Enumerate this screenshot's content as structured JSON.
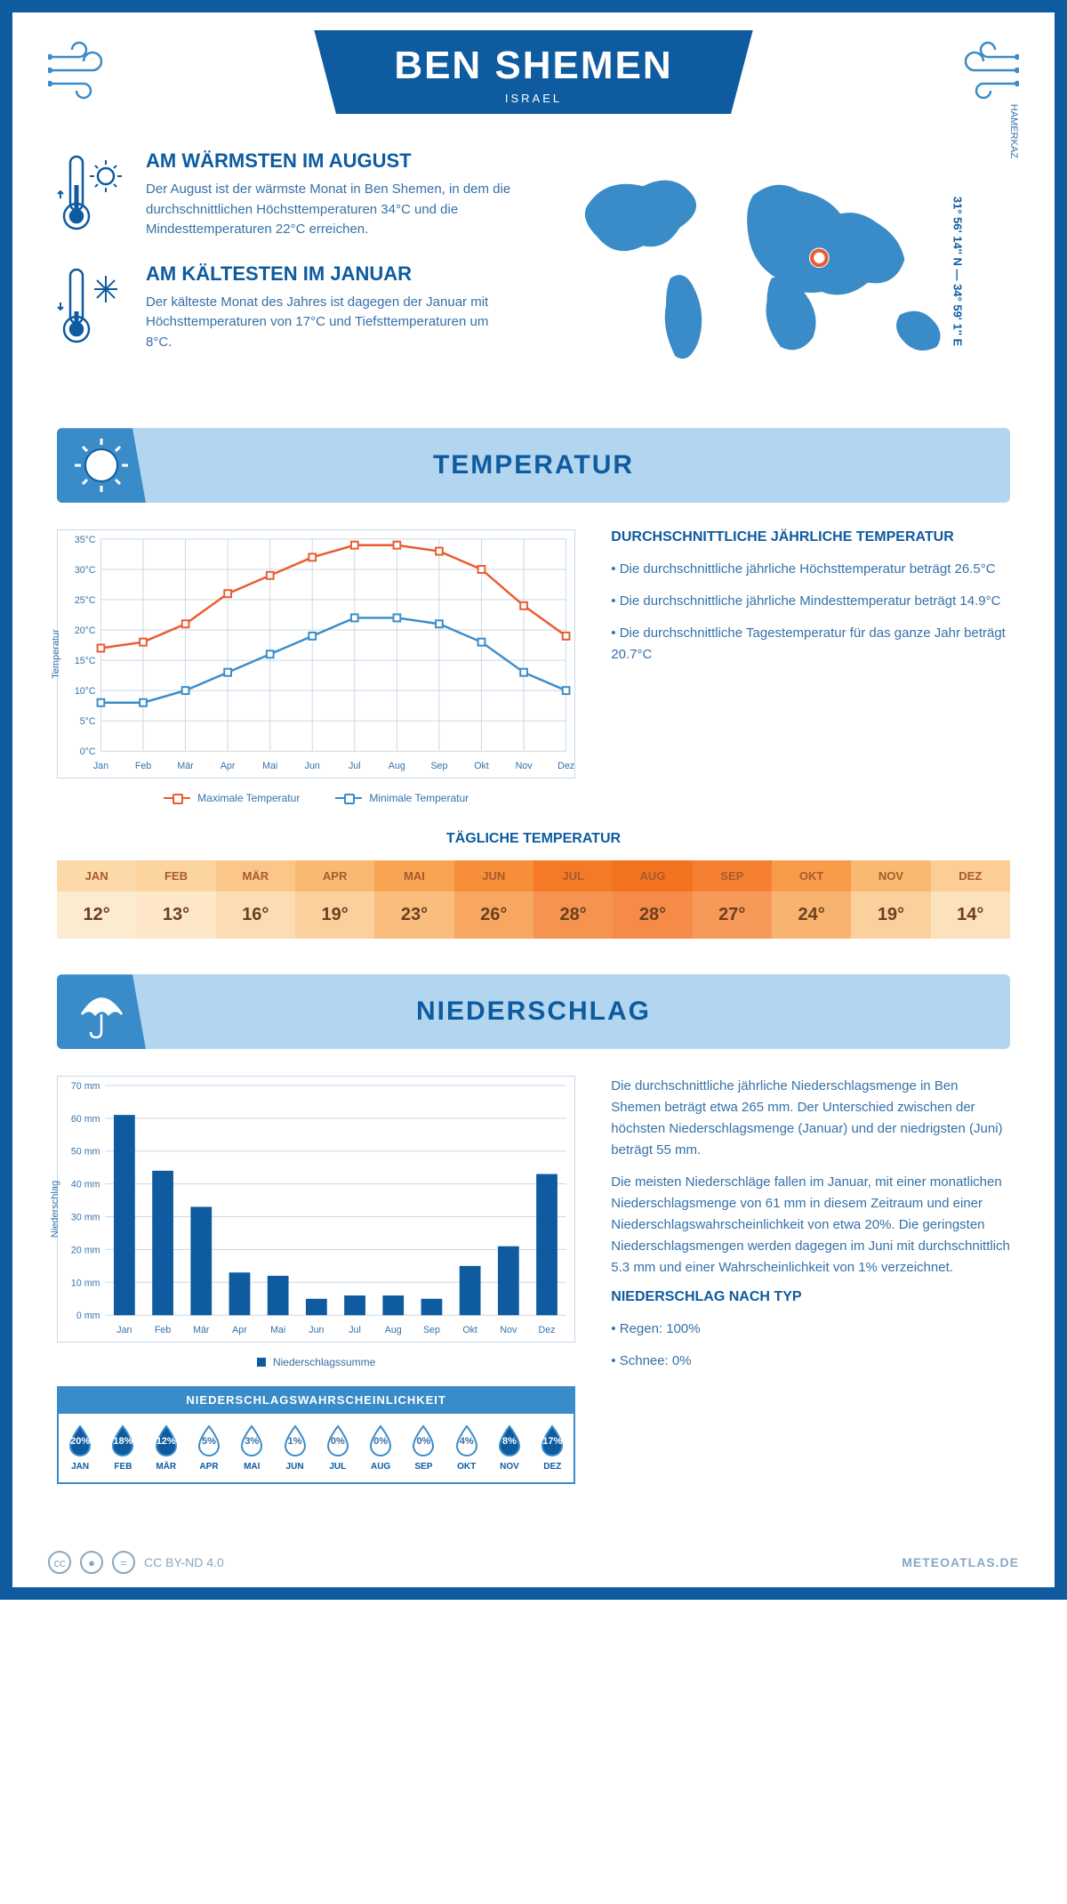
{
  "header": {
    "title": "BEN SHEMEN",
    "subtitle": "ISRAEL"
  },
  "coords": "31° 56' 14'' N — 34° 59' 1'' E",
  "region": "HAMERKAZ",
  "warmest": {
    "title": "AM WÄRMSTEN IM AUGUST",
    "text": "Der August ist der wärmste Monat in Ben Shemen, in dem die durchschnittlichen Höchsttemperaturen 34°C und die Mindesttemperaturen 22°C erreichen."
  },
  "coldest": {
    "title": "AM KÄLTESTEN IM JANUAR",
    "text": "Der kälteste Monat des Jahres ist dagegen der Januar mit Höchsttemperaturen von 17°C und Tiefsttemperaturen um 8°C."
  },
  "temp_section": {
    "title": "TEMPERATUR",
    "avg_title": "DURCHSCHNITTLICHE JÄHRLICHE TEMPERATUR",
    "bullets": [
      "• Die durchschnittliche jährliche Höchsttemperatur beträgt 26.5°C",
      "• Die durchschnittliche jährliche Mindesttemperatur beträgt 14.9°C",
      "• Die durchschnittliche Tagestemperatur für das ganze Jahr beträgt 20.7°C"
    ],
    "legend_max": "Maximale Temperatur",
    "legend_min": "Minimale Temperatur",
    "axis_label": "Temperatur",
    "daily_title": "TÄGLICHE TEMPERATUR"
  },
  "temp_chart": {
    "months": [
      "Jan",
      "Feb",
      "Mär",
      "Apr",
      "Mai",
      "Jun",
      "Jul",
      "Aug",
      "Sep",
      "Okt",
      "Nov",
      "Dez"
    ],
    "max": [
      17,
      18,
      21,
      26,
      29,
      32,
      34,
      34,
      33,
      30,
      24,
      19
    ],
    "min": [
      8,
      8,
      10,
      13,
      16,
      19,
      22,
      22,
      21,
      18,
      13,
      10
    ],
    "ylim": [
      0,
      35
    ],
    "ytick_step": 5,
    "max_color": "#ea5b2f",
    "min_color": "#3a8cc9",
    "grid_color": "#c9d8e6",
    "background": "#ffffff"
  },
  "daily_temp": {
    "months": [
      "JAN",
      "FEB",
      "MÄR",
      "APR",
      "MAI",
      "JUN",
      "JUL",
      "AUG",
      "SEP",
      "OKT",
      "NOV",
      "DEZ"
    ],
    "values": [
      "12°",
      "13°",
      "16°",
      "19°",
      "23°",
      "26°",
      "28°",
      "28°",
      "27°",
      "24°",
      "19°",
      "14°"
    ],
    "head_colors": [
      "#fcd9a8",
      "#fcd4a0",
      "#fbc788",
      "#fab970",
      "#f8a452",
      "#f68e3a",
      "#f47a28",
      "#f37320",
      "#f58032",
      "#f89c4a",
      "#fab970",
      "#fccd95"
    ],
    "cell_colors": [
      "#fdebd0",
      "#fde7c8",
      "#fcdcb2",
      "#fbd09c",
      "#fabd7c",
      "#f8a762",
      "#f69350",
      "#f58b46",
      "#f79958",
      "#f9b370",
      "#fbd09c",
      "#fce1bd"
    ]
  },
  "precip_section": {
    "title": "NIEDERSCHLAG",
    "text1": "Die durchschnittliche jährliche Niederschlagsmenge in Ben Shemen beträgt etwa 265 mm. Der Unterschied zwischen der höchsten Niederschlagsmenge (Januar) und der niedrigsten (Juni) beträgt 55 mm.",
    "text2": "Die meisten Niederschläge fallen im Januar, mit einer monatlichen Niederschlagsmenge von 61 mm in diesem Zeitraum und einer Niederschlagswahrscheinlichkeit von etwa 20%. Die geringsten Niederschlagsmengen werden dagegen im Juni mit durchschnittlich 5.3 mm und einer Wahrscheinlichkeit von 1% verzeichnet.",
    "by_type_title": "NIEDERSCHLAG NACH TYP",
    "by_type": [
      "• Regen: 100%",
      "• Schnee: 0%"
    ],
    "legend": "Niederschlagssumme",
    "axis_label": "Niederschlag",
    "prob_title": "NIEDERSCHLAGSWAHRSCHEINLICHKEIT"
  },
  "precip_chart": {
    "months": [
      "Jan",
      "Feb",
      "Mär",
      "Apr",
      "Mai",
      "Jun",
      "Jul",
      "Aug",
      "Sep",
      "Okt",
      "Nov",
      "Dez"
    ],
    "values": [
      61,
      44,
      33,
      13,
      12,
      5,
      6,
      6,
      5,
      15,
      21,
      43
    ],
    "ylim": [
      0,
      70
    ],
    "ytick_step": 10,
    "bar_color": "#0e5ba0",
    "grid_color": "#c9d8e6"
  },
  "precip_prob": {
    "months": [
      "JAN",
      "FEB",
      "MÄR",
      "APR",
      "MAI",
      "JUN",
      "JUL",
      "AUG",
      "SEP",
      "OKT",
      "NOV",
      "DEZ"
    ],
    "values": [
      "20%",
      "18%",
      "12%",
      "5%",
      "3%",
      "1%",
      "0%",
      "0%",
      "0%",
      "4%",
      "8%",
      "17%"
    ],
    "filled": [
      true,
      true,
      true,
      false,
      false,
      false,
      false,
      false,
      false,
      false,
      true,
      true
    ],
    "fill_color": "#0e5ba0",
    "outline_color": "#3a8cc9"
  },
  "footer": {
    "license": "CC BY-ND 4.0",
    "brand": "METEOATLAS.DE"
  }
}
